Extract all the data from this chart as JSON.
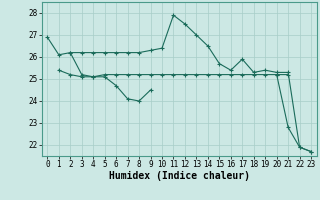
{
  "xlabel": "Humidex (Indice chaleur)",
  "x": [
    0,
    1,
    2,
    3,
    4,
    5,
    6,
    7,
    8,
    9,
    10,
    11,
    12,
    13,
    14,
    15,
    16,
    17,
    18,
    19,
    20,
    21,
    22,
    23
  ],
  "line1": [
    26.9,
    26.1,
    26.2,
    25.2,
    25.1,
    25.1,
    24.7,
    24.1,
    24.0,
    24.5,
    null,
    null,
    null,
    null,
    null,
    null,
    null,
    null,
    null,
    null,
    null,
    null,
    null,
    null
  ],
  "line2": [
    null,
    null,
    26.2,
    26.2,
    26.2,
    26.2,
    26.2,
    26.2,
    26.2,
    26.3,
    26.4,
    27.9,
    27.5,
    27.0,
    26.5,
    25.7,
    25.4,
    25.9,
    25.3,
    25.4,
    25.3,
    25.3,
    21.9,
    21.7
  ],
  "line3": [
    null,
    25.4,
    25.2,
    25.1,
    25.1,
    25.2,
    25.2,
    25.2,
    25.2,
    25.2,
    25.2,
    25.2,
    25.2,
    25.2,
    25.2,
    25.2,
    25.2,
    25.2,
    25.2,
    25.2,
    25.2,
    25.2,
    null,
    null
  ],
  "line4": [
    null,
    null,
    null,
    null,
    null,
    null,
    null,
    null,
    null,
    null,
    null,
    null,
    null,
    null,
    null,
    null,
    null,
    null,
    null,
    null,
    25.2,
    22.8,
    21.9,
    21.7
  ],
  "ylim": [
    21.5,
    28.5
  ],
  "xlim": [
    -0.5,
    23.5
  ],
  "yticks": [
    22,
    23,
    24,
    25,
    26,
    27,
    28
  ],
  "xticks": [
    0,
    1,
    2,
    3,
    4,
    5,
    6,
    7,
    8,
    9,
    10,
    11,
    12,
    13,
    14,
    15,
    16,
    17,
    18,
    19,
    20,
    21,
    22,
    23
  ],
  "line_color": "#1a6b5a",
  "bg_color": "#cce8e4",
  "grid_color": "#a8cec8",
  "spine_color": "#4a9a8a",
  "tick_fontsize": 5.5,
  "xlabel_fontsize": 7.0,
  "xlabel_bold": true
}
